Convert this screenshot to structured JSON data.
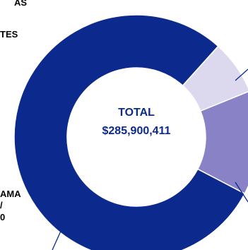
{
  "chart_data": {
    "type": "pie",
    "center_label": "TOTAL",
    "center_value": "$285,900,411",
    "slices": [
      {
        "color": "#dcd9ef",
        "fraction": 0.072
      },
      {
        "color": "#8a82c6",
        "fraction": 0.138
      },
      {
        "color": "#0c2a8e",
        "fraction": 0.79
      }
    ],
    "label_fragments": [
      {
        "text": "AS"
      },
      {
        "text": "TES"
      },
      {
        "text": "AMA"
      },
      {
        "text": "/"
      },
      {
        "text": "0"
      }
    ]
  }
}
